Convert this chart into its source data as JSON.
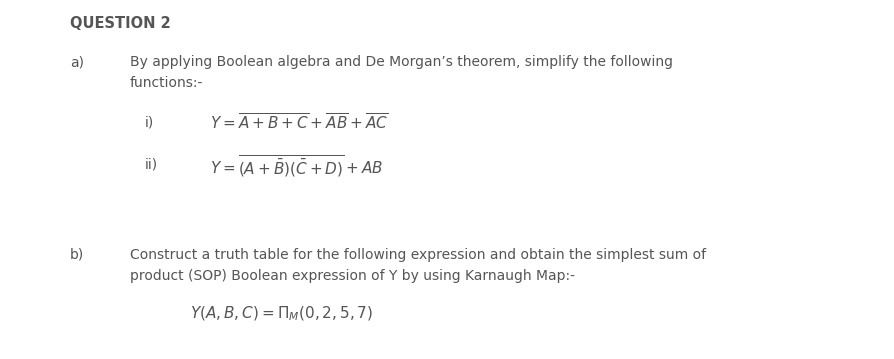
{
  "background_color": "#ffffff",
  "text_color": "#555555",
  "title": "QUESTION 2",
  "title_fontsize": 10.5,
  "body_fontsize": 10,
  "math_fontsize": 11,
  "label_a": "a)",
  "label_b": "b)",
  "label_i": "i)",
  "label_ii": "ii)",
  "text_a1": "By applying Boolean algebra and De Morgan’s theorem, simplify the following",
  "text_a2": "functions:-",
  "text_b1": "Construct a truth table for the following expression and obtain the simplest sum of",
  "text_b2": "product (SOP) Boolean expression of Y by using Karnaugh Map:-",
  "eq_i": "$Y = \\overline{A + B + C} + \\overline{AB} + \\overline{AC}$",
  "eq_ii": "$Y = \\overline{(A + \\bar{B})(\\bar{C} + D)} + AB$",
  "eq_b": "$Y(A, B, C) = \\Pi_M(0, 2, 5, 7)$"
}
